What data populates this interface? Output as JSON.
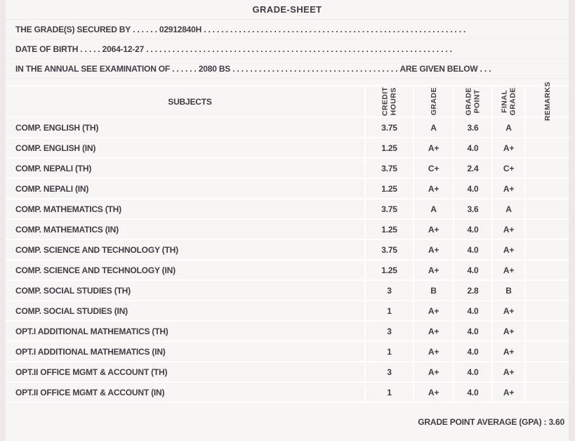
{
  "title": "GRADE-SHEET",
  "info_lines": [
    {
      "label": "THE GRADE(S) SECURED BY",
      "leader": " . . . . . . ",
      "value": "02912840H",
      "trailer": " . . . . . . . . . . . . . . . . . . . . . . . . . . . . . . . . . . . . . . . . . . . . . . . . . . . . . . . . . . . ."
    },
    {
      "label": "DATE OF BIRTH",
      "leader": " . . . . . ",
      "value": "2064-12-27",
      "trailer": " . . . . . . . . . . . . . . . . . . . . . . . . . . . . . . . . . . . . . . . . . . . . . . . . . . . . . . . . . . . . . . . . . . . . . ."
    },
    {
      "label": "IN THE ANNUAL SEE EXAMINATION OF",
      "leader": " . . . . . . ",
      "value": "2080 BS",
      "trailer": " . . . . . . . . . . . . . . . . . . . . . . . . . . . . . . . . . . . . . . ",
      "suffix": "ARE GIVEN BELOW . . ."
    }
  ],
  "table": {
    "columns": [
      {
        "key": "subject",
        "label": "SUBJECTS"
      },
      {
        "key": "credit_hours",
        "label": "CREDIT\nHOURS"
      },
      {
        "key": "grade",
        "label": "GRADE"
      },
      {
        "key": "grade_point",
        "label": "GRADE\nPOINT"
      },
      {
        "key": "final_grade",
        "label": "FINAL\nGRADE"
      },
      {
        "key": "remarks",
        "label": "REMARKS"
      }
    ],
    "rows": [
      {
        "subject": "COMP. ENGLISH (TH)",
        "credit_hours": "3.75",
        "grade": "A",
        "grade_point": "3.6",
        "final_grade": "A",
        "remarks": ""
      },
      {
        "subject": "COMP. ENGLISH (IN)",
        "credit_hours": "1.25",
        "grade": "A+",
        "grade_point": "4.0",
        "final_grade": "A+",
        "remarks": ""
      },
      {
        "subject": "COMP. NEPALI (TH)",
        "credit_hours": "3.75",
        "grade": "C+",
        "grade_point": "2.4",
        "final_grade": "C+",
        "remarks": ""
      },
      {
        "subject": "COMP. NEPALI (IN)",
        "credit_hours": "1.25",
        "grade": "A+",
        "grade_point": "4.0",
        "final_grade": "A+",
        "remarks": ""
      },
      {
        "subject": "COMP. MATHEMATICS (TH)",
        "credit_hours": "3.75",
        "grade": "A",
        "grade_point": "3.6",
        "final_grade": "A",
        "remarks": ""
      },
      {
        "subject": "COMP. MATHEMATICS (IN)",
        "credit_hours": "1.25",
        "grade": "A+",
        "grade_point": "4.0",
        "final_grade": "A+",
        "remarks": ""
      },
      {
        "subject": "COMP. SCIENCE AND TECHNOLOGY (TH)",
        "credit_hours": "3.75",
        "grade": "A+",
        "grade_point": "4.0",
        "final_grade": "A+",
        "remarks": ""
      },
      {
        "subject": "COMP. SCIENCE AND TECHNOLOGY (IN)",
        "credit_hours": "1.25",
        "grade": "A+",
        "grade_point": "4.0",
        "final_grade": "A+",
        "remarks": ""
      },
      {
        "subject": "COMP. SOCIAL STUDIES (TH)",
        "credit_hours": "3",
        "grade": "B",
        "grade_point": "2.8",
        "final_grade": "B",
        "remarks": ""
      },
      {
        "subject": "COMP. SOCIAL STUDIES (IN)",
        "credit_hours": "1",
        "grade": "A+",
        "grade_point": "4.0",
        "final_grade": "A+",
        "remarks": ""
      },
      {
        "subject": "OPT.I ADDITIONAL MATHEMATICS (TH)",
        "credit_hours": "3",
        "grade": "A+",
        "grade_point": "4.0",
        "final_grade": "A+",
        "remarks": ""
      },
      {
        "subject": "OPT.I ADDITIONAL MATHEMATICS (IN)",
        "credit_hours": "1",
        "grade": "A+",
        "grade_point": "4.0",
        "final_grade": "A+",
        "remarks": ""
      },
      {
        "subject": "OPT.II OFFICE MGMT & ACCOUNT (TH)",
        "credit_hours": "3",
        "grade": "A+",
        "grade_point": "4.0",
        "final_grade": "A+",
        "remarks": ""
      },
      {
        "subject": "OPT.II OFFICE MGMT & ACCOUNT (IN)",
        "credit_hours": "1",
        "grade": "A+",
        "grade_point": "4.0",
        "final_grade": "A+",
        "remarks": ""
      }
    ]
  },
  "summary": {
    "gpa_label": "GRADE POINT AVERAGE (GPA) : ",
    "gpa_value": "3.60"
  },
  "colors": {
    "page_background": "#eee8e8",
    "panel_background": "#f8f5f5",
    "grid_line": "#fffdfd",
    "text": "#3e3d43"
  }
}
